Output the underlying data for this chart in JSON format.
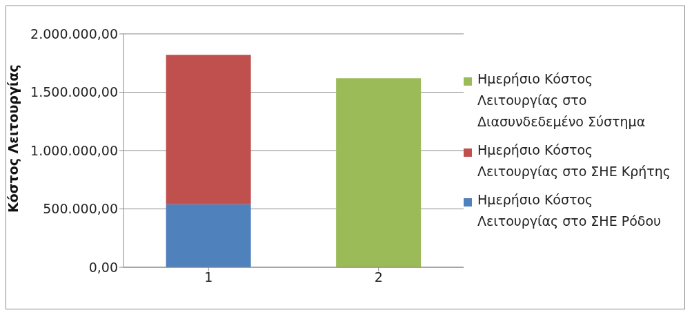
{
  "chart_data": {
    "type": "bar",
    "stacked": true,
    "ylabel": "Κόστος Λειτουργίας",
    "categories": [
      "1",
      "2"
    ],
    "series": [
      {
        "name": "Ημερήσιο Κόστος Λειτουργίας στο ΣΗΕ Ρόδου",
        "color": "#4f81bd",
        "values": [
          540000,
          null
        ]
      },
      {
        "name": "Ημερήσιο Κόστος Λειτουργίας στο ΣΗΕ Κρήτης",
        "color": "#c0504d",
        "values": [
          1280000,
          null
        ]
      },
      {
        "name": "Ημερήσιο Κόστος Λειτουργίας στο Διασυνδεδεμένο Σύστημα",
        "color": "#9bbb59",
        "values": [
          null,
          1620000
        ]
      }
    ],
    "ylim": [
      0,
      2000000
    ],
    "yticks": [
      {
        "value": 0,
        "label": "0,00"
      },
      {
        "value": 500000,
        "label": "500.000,00"
      },
      {
        "value": 1000000,
        "label": "1.000.000,00"
      },
      {
        "value": 1500000,
        "label": "1.500.000,00"
      },
      {
        "value": 2000000,
        "label": "2.000.000,00"
      }
    ],
    "grid": "y",
    "legend": "right"
  }
}
